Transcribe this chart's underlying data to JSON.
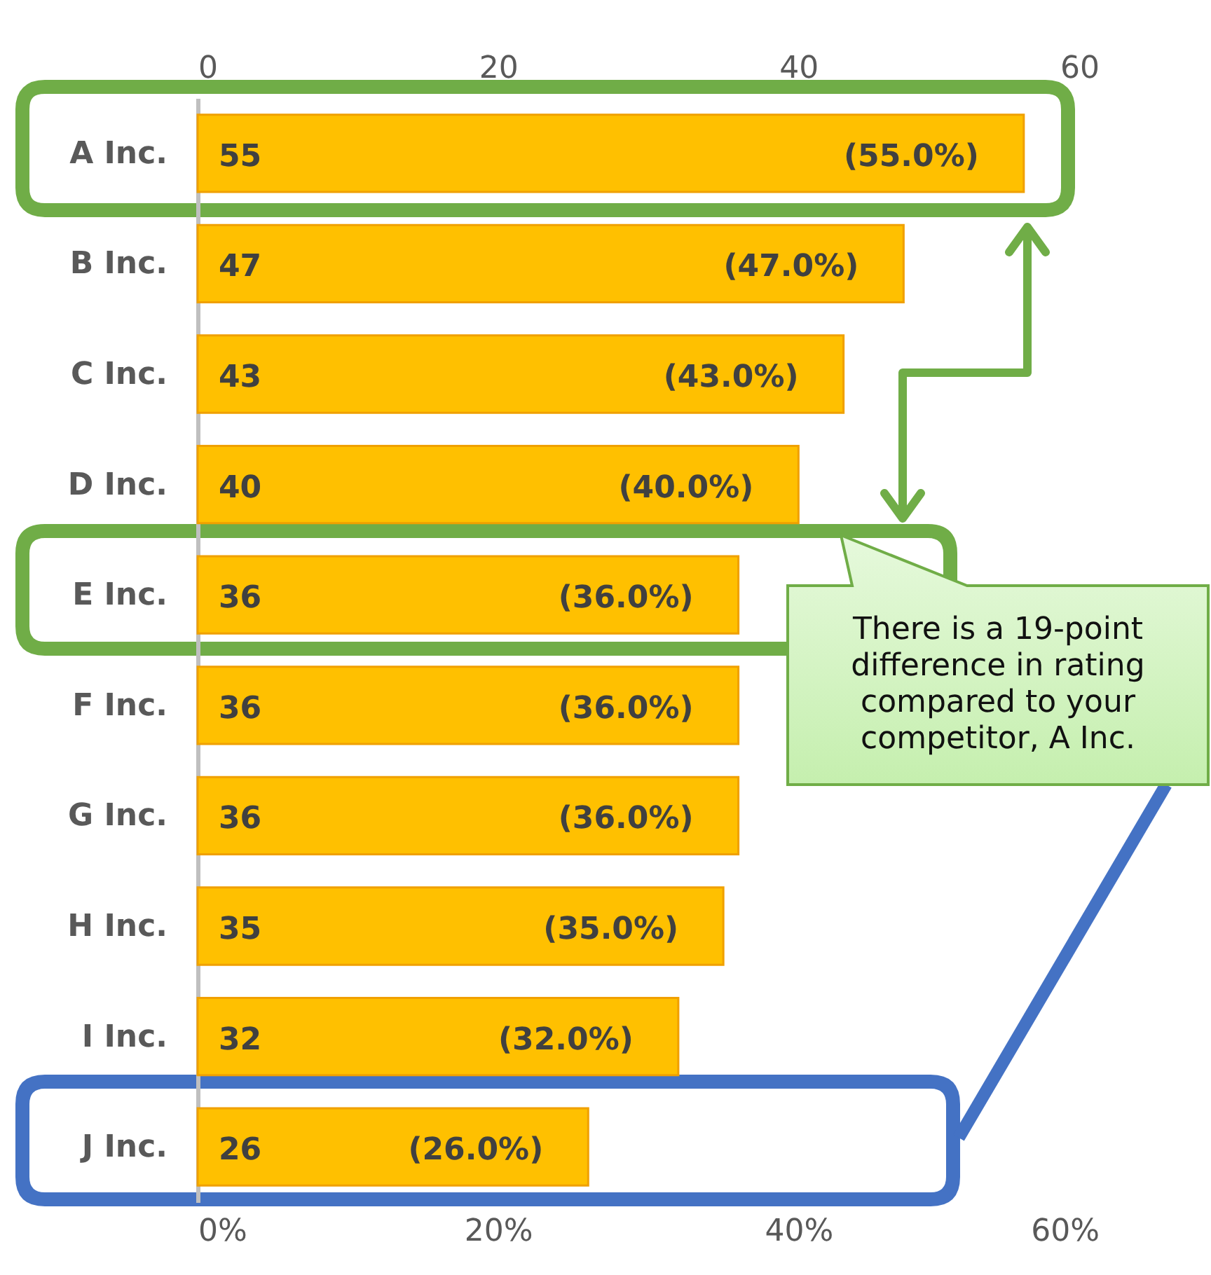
{
  "chart_data": {
    "type": "bar",
    "orientation": "horizontal",
    "categories": [
      "A Inc.",
      "B Inc.",
      "C Inc.",
      "D Inc.",
      "E Inc.",
      "F Inc.",
      "G Inc.",
      "H Inc.",
      "I Inc.",
      "J Inc."
    ],
    "values": [
      55,
      47,
      43,
      40,
      36,
      36,
      36,
      35,
      32,
      26
    ],
    "color": "#ffc000",
    "data_labels": true,
    "xlim": [
      0,
      60
    ],
    "xticks": [
      {
        "value": 0,
        "label": "0%"
      },
      {
        "value": 20,
        "label": "20%"
      },
      {
        "value": 40,
        "label": "40%"
      },
      {
        "value": 60,
        "label": "60%"
      }
    ],
    "x2lim": [
      0,
      60
    ],
    "x2ticks": [
      0,
      20,
      40,
      60
    ],
    "annotations": [
      {
        "text": "(55.0%)",
        "x": 55,
        "y": "A Inc."
      },
      {
        "text": "(47.0%)",
        "x": 47,
        "y": "B Inc."
      },
      {
        "text": "(43.0%)",
        "x": 43,
        "y": "C Inc."
      },
      {
        "text": "(40.0%)",
        "x": 40,
        "y": "D Inc."
      },
      {
        "text": "(36.0%)",
        "x": 36,
        "y": "E Inc."
      },
      {
        "text": "(36.0%)",
        "x": 36,
        "y": "F Inc."
      },
      {
        "text": "(36.0%)",
        "x": 36,
        "y": "G Inc."
      },
      {
        "text": "(35.0%)",
        "x": 35,
        "y": "H Inc."
      },
      {
        "text": "(32.0%)",
        "x": 32,
        "y": "I Inc."
      },
      {
        "text": "(26.0%)",
        "x": 26,
        "y": "J Inc."
      },
      "There is a 19-point difference in rating compared to your competitor, A Inc."
    ]
  }
}
